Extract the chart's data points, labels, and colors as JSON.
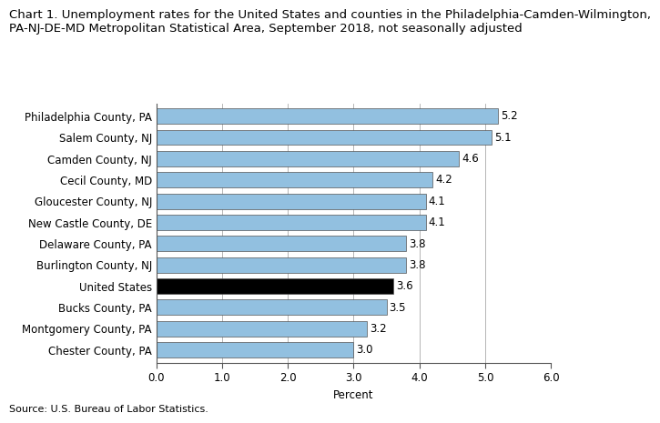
{
  "title_line1": "Chart 1. Unemployment rates for the United States and counties in the Philadelphia-Camden-Wilmington,",
  "title_line2": "PA-NJ-DE-MD Metropolitan Statistical Area, September 2018, not seasonally adjusted",
  "categories": [
    "Chester County, PA",
    "Montgomery County, PA",
    "Bucks County, PA",
    "United States",
    "Burlington County, NJ",
    "Delaware County, PA",
    "New Castle County, DE",
    "Gloucester County, NJ",
    "Cecil County, MD",
    "Camden County, NJ",
    "Salem County, NJ",
    "Philadelphia County, PA"
  ],
  "values": [
    3.0,
    3.2,
    3.5,
    3.6,
    3.8,
    3.8,
    4.1,
    4.1,
    4.2,
    4.6,
    5.1,
    5.2
  ],
  "bar_colors": [
    "#92c0e0",
    "#92c0e0",
    "#92c0e0",
    "#000000",
    "#92c0e0",
    "#92c0e0",
    "#92c0e0",
    "#92c0e0",
    "#92c0e0",
    "#92c0e0",
    "#92c0e0",
    "#92c0e0"
  ],
  "xlabel": "Percent",
  "xlim": [
    0.0,
    6.0
  ],
  "xticks": [
    0.0,
    1.0,
    2.0,
    3.0,
    4.0,
    5.0,
    6.0
  ],
  "source": "Source: U.S. Bureau of Labor Statistics.",
  "bar_edge_color": "#555555",
  "bar_edge_width": 0.5,
  "background_color": "#ffffff",
  "grid_color": "#aaaaaa",
  "title_fontsize": 9.5,
  "axis_fontsize": 8.5,
  "value_fontsize": 8.5,
  "source_fontsize": 8.0,
  "bar_height": 0.72
}
